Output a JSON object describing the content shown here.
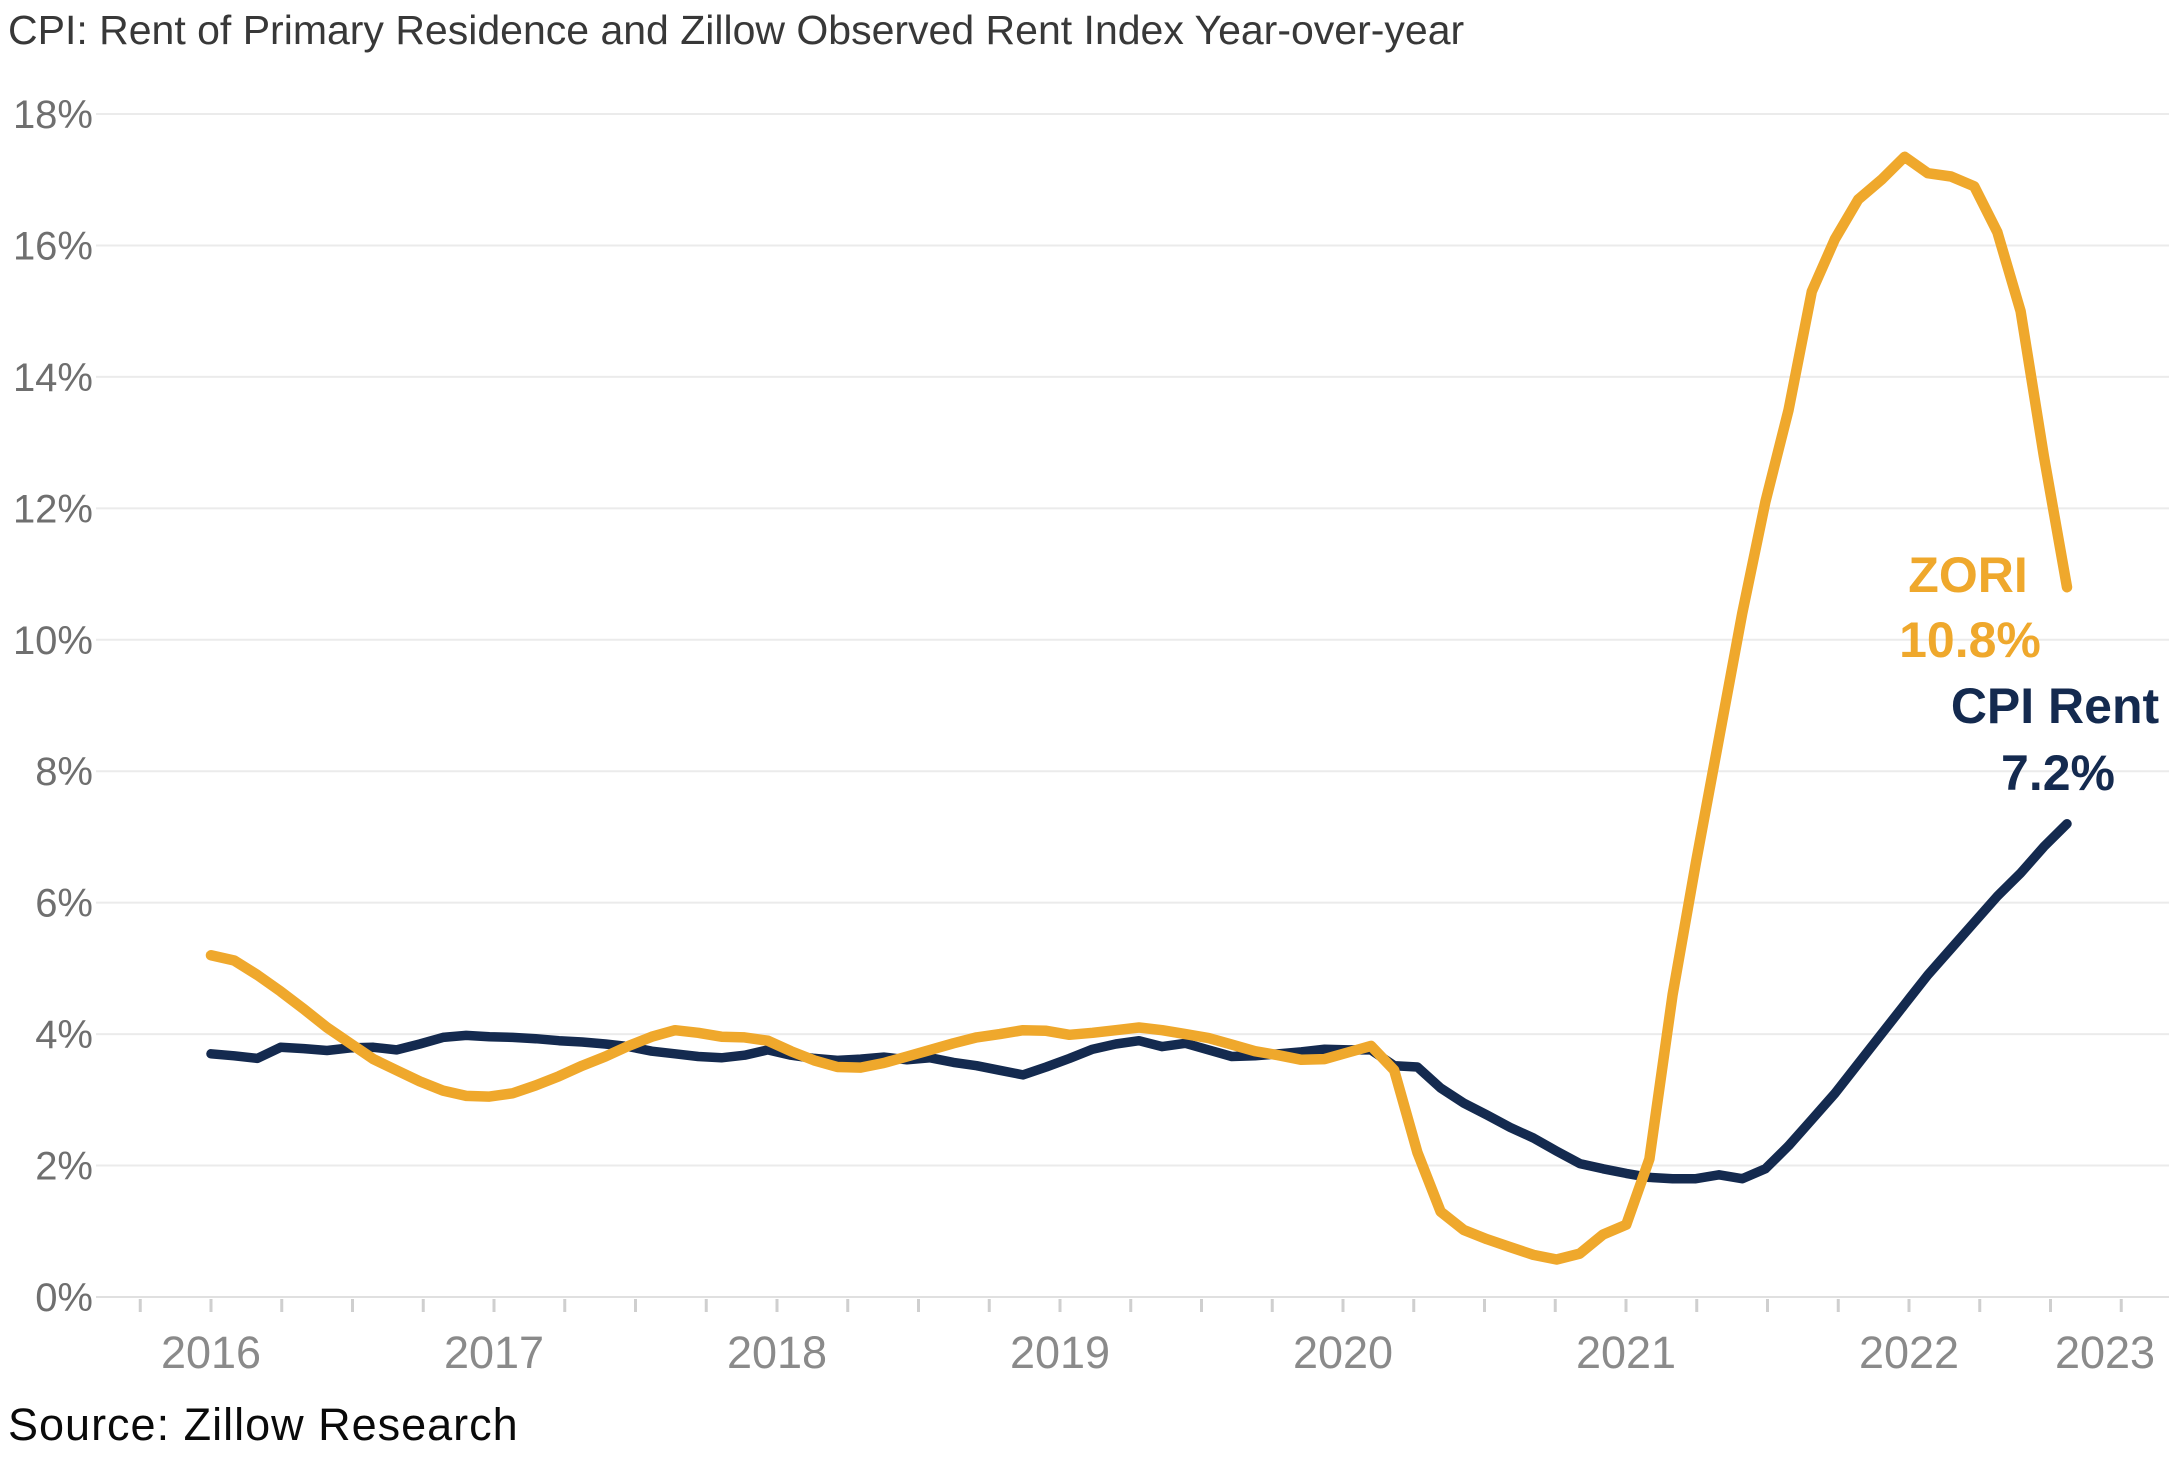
{
  "title": "CPI: Rent of Primary Residence and Zillow Observed Rent Index Year-over-year",
  "source": "Source: Zillow Research",
  "colors": {
    "zori": "#EFA82C",
    "cpi": "#142A4F",
    "grid": "#EBEBEB",
    "baseline": "#E0E0E0",
    "tick": "#CFCFCF",
    "y_label": "#6F6F6F",
    "year_label": "#8A8A8A",
    "title": "#383838",
    "source": "#0A0A0A",
    "background": "#FFFFFF"
  },
  "annotations": {
    "zori_name": "ZORI",
    "zori_value": "10.8%",
    "cpi_name": "CPI Rent",
    "cpi_value": "7.2%"
  },
  "y_axis": {
    "labels": [
      "0%",
      "2%",
      "4%",
      "6%",
      "8%",
      "10%",
      "12%",
      "14%",
      "16%",
      "18%"
    ],
    "min": 0,
    "max": 18,
    "step": 2
  },
  "x_axis": {
    "labels": [
      "2016",
      "2017",
      "2018",
      "2019",
      "2020",
      "2021",
      "2022",
      "2023"
    ],
    "minor_ticks": "quarterly"
  },
  "chart_data": {
    "type": "line",
    "title": "CPI: Rent of Primary Residence and Zillow Observed Rent Index Year-over-year",
    "x_start": "2016-01",
    "x_end": "2022-09",
    "x_freq": "monthly",
    "ylim": [
      0,
      18
    ],
    "grid": true,
    "legend_position": "inline-annotations",
    "series": [
      {
        "name": "ZORI",
        "end_label": "ZORI 10.8%",
        "color": "#EFA82C",
        "values": [
          5.2,
          5.12,
          4.9,
          4.65,
          4.38,
          4.1,
          3.86,
          3.62,
          3.45,
          3.28,
          3.14,
          3.06,
          3.05,
          3.1,
          3.22,
          3.36,
          3.52,
          3.66,
          3.82,
          3.96,
          4.06,
          4.02,
          3.96,
          3.95,
          3.9,
          3.74,
          3.6,
          3.5,
          3.49,
          3.56,
          3.66,
          3.76,
          3.86,
          3.95,
          4.0,
          4.06,
          4.05,
          3.99,
          4.02,
          4.06,
          4.1,
          4.06,
          4.0,
          3.94,
          3.84,
          3.74,
          3.68,
          3.61,
          3.62,
          3.72,
          3.82,
          3.45,
          2.2,
          1.3,
          1.02,
          0.88,
          0.76,
          0.64,
          0.57,
          0.66,
          0.95,
          1.1,
          2.1,
          4.6,
          6.6,
          8.5,
          10.4,
          12.1,
          13.5,
          15.3,
          16.1,
          16.7,
          17.0,
          17.35,
          17.1,
          17.05,
          16.9,
          16.2,
          15.0,
          12.8,
          10.8
        ]
      },
      {
        "name": "CPI Rent",
        "end_label": "CPI Rent 7.2%",
        "color": "#142A4F",
        "values": [
          3.7,
          3.67,
          3.63,
          3.8,
          3.78,
          3.75,
          3.79,
          3.8,
          3.76,
          3.85,
          3.95,
          3.98,
          3.96,
          3.95,
          3.93,
          3.9,
          3.88,
          3.85,
          3.81,
          3.74,
          3.7,
          3.66,
          3.64,
          3.68,
          3.76,
          3.68,
          3.63,
          3.6,
          3.62,
          3.65,
          3.61,
          3.64,
          3.57,
          3.52,
          3.45,
          3.38,
          3.5,
          3.63,
          3.77,
          3.85,
          3.9,
          3.81,
          3.86,
          3.76,
          3.66,
          3.67,
          3.7,
          3.73,
          3.77,
          3.76,
          3.76,
          3.52,
          3.5,
          3.18,
          2.95,
          2.77,
          2.58,
          2.42,
          2.22,
          2.03,
          1.95,
          1.88,
          1.82,
          1.8,
          1.8,
          1.86,
          1.8,
          1.95,
          2.3,
          2.7,
          3.1,
          3.55,
          4.0,
          4.45,
          4.9,
          5.3,
          5.7,
          6.1,
          6.45,
          6.85,
          7.2
        ]
      }
    ]
  }
}
